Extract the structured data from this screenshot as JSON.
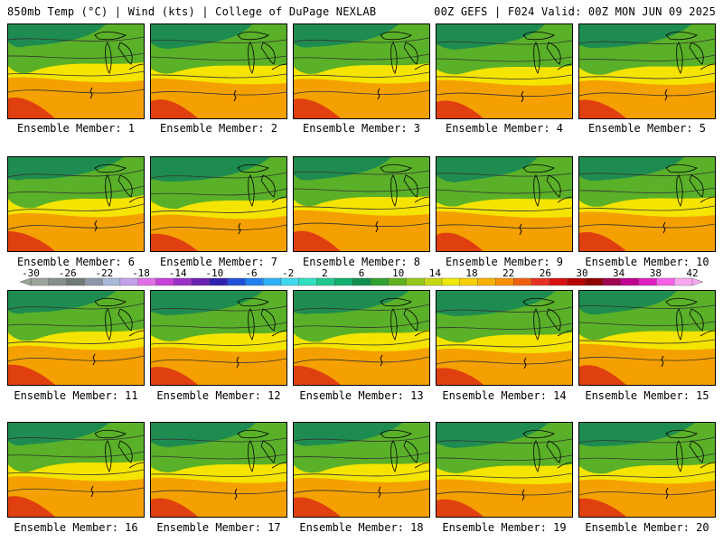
{
  "header": {
    "left_title": "850mb Temp (°C) | Wind (kts) | College of DuPage NEXLAB",
    "right_title": "00Z GEFS | F024 Valid: 00Z MON JUN 09 2025"
  },
  "members": [
    "Ensemble Member: 1",
    "Ensemble Member: 2",
    "Ensemble Member: 3",
    "Ensemble Member: 4",
    "Ensemble Member: 5",
    "Ensemble Member: 6",
    "Ensemble Member: 7",
    "Ensemble Member: 8",
    "Ensemble Member: 9",
    "Ensemble Member: 10",
    "Ensemble Member: 11",
    "Ensemble Member: 12",
    "Ensemble Member: 13",
    "Ensemble Member: 14",
    "Ensemble Member: 15",
    "Ensemble Member: 16",
    "Ensemble Member: 17",
    "Ensemble Member: 18",
    "Ensemble Member: 19",
    "Ensemble Member: 20"
  ],
  "colorbar": {
    "labels": [
      "-30",
      "-26",
      "-22",
      "-18",
      "-14",
      "-10",
      "-6",
      "-2",
      "2",
      "6",
      "10",
      "14",
      "18",
      "22",
      "26",
      "30",
      "34",
      "38",
      "42"
    ],
    "colors": [
      "#9aa49a",
      "#86908a",
      "#707a74",
      "#8e97a8",
      "#a9b8d8",
      "#c3a0e8",
      "#e070e8",
      "#c840d8",
      "#9a30c8",
      "#6a20b0",
      "#3020b0",
      "#2050d8",
      "#2080f0",
      "#30b0f8",
      "#40d8f0",
      "#30e0c0",
      "#20c890",
      "#10b070",
      "#109050",
      "#30a030",
      "#60b020",
      "#98c818",
      "#c8d810",
      "#f0e808",
      "#f8d000",
      "#f8b000",
      "#f89000",
      "#f06010",
      "#e83020",
      "#d81010",
      "#b80000",
      "#900000",
      "#a00050",
      "#c00090",
      "#e020c0",
      "#f860e8",
      "#f8a8f0"
    ]
  },
  "colors": {
    "cold_green": "#1e8c50",
    "mid_green": "#5ab028",
    "yellow": "#f4e400",
    "orange": "#f4a000",
    "hot_red": "#e04010",
    "contour": "#333333"
  }
}
